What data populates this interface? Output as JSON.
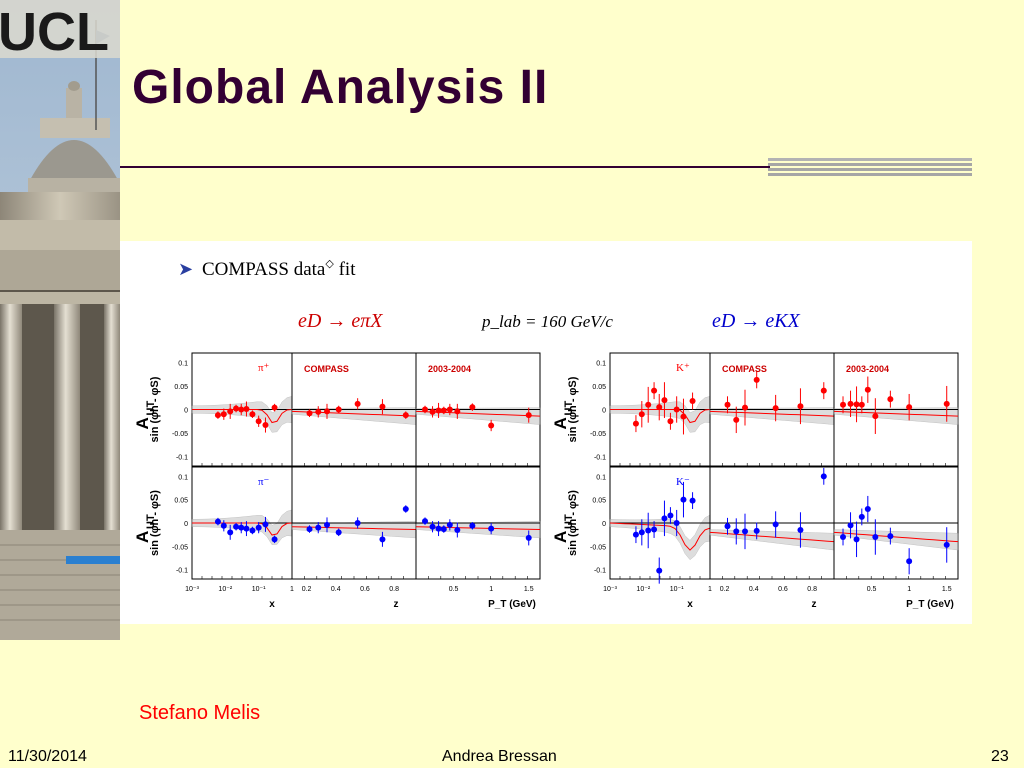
{
  "slide": {
    "title": "Global Analysis II",
    "author_note": "Stefano Melis",
    "footer": {
      "date": "11/30/2014",
      "presenter": "Andrea Bressan",
      "page": "23"
    },
    "logo_text": "UCL",
    "colors": {
      "background": "#ffffcc",
      "title": "#330033",
      "author": "#ff0000",
      "rule": "#330033"
    }
  },
  "figure": {
    "bullet": "➤",
    "heading": "COMPASS data",
    "heading_sup": "◇",
    "heading_end": " fit",
    "plab": "p_lab = 160 GeV/c",
    "left_process": "eD → eπX",
    "right_process": "eD → eKX",
    "ylabel_top": "sin (φh - φS)",
    "ylabel_main": "A",
    "ylabel_sub": "UT",
    "panel_labels": {
      "pi_plus": "π⁺",
      "pi_minus": "π⁻",
      "k_plus": "K⁺",
      "k_minus": "K⁻",
      "compass": "COMPASS",
      "years": "2003-2004"
    },
    "x_axis_labels": [
      "x",
      "z",
      "P_T (GeV)"
    ],
    "y_ticks": [
      "0.1",
      "0.05",
      "0",
      "-0.05",
      "-0.1"
    ],
    "x_ticks_x": [
      "10⁻³",
      "10⁻²",
      "10⁻¹",
      "1"
    ],
    "x_ticks_z": [
      "0.2",
      "0.4",
      "0.6",
      "0.8"
    ],
    "x_ticks_pt": [
      "0.5",
      "1",
      "1.5"
    ],
    "colors": {
      "positive": "#ff0000",
      "negative": "#0000ff",
      "curve": "#ff0000",
      "band": "#c8c8c8",
      "process": "#cc0000",
      "process_k": "#0000cc"
    }
  },
  "chart_data": [
    {
      "type": "scatter",
      "title": "π⁺",
      "xlabel": "x",
      "ylabel": "A_UT sin(φh - φS)",
      "ylim": [
        -0.12,
        0.12
      ],
      "log_x": true,
      "series": [
        {
          "name": "π⁺",
          "x": [
            0.006,
            0.009,
            0.014,
            0.021,
            0.03,
            0.043,
            0.065,
            0.1,
            0.16,
            0.3
          ],
          "y": [
            -0.012,
            -0.01,
            -0.004,
            0.002,
            0.0,
            0.001,
            -0.01,
            -0.025,
            -0.033,
            0.004
          ]
        }
      ]
    },
    {
      "type": "scatter",
      "title": "COMPASS",
      "xlabel": "z",
      "ylabel": "",
      "ylim": [
        -0.12,
        0.12
      ],
      "series": [
        {
          "name": "π⁺",
          "x": [
            0.22,
            0.28,
            0.34,
            0.42,
            0.55,
            0.72,
            0.88
          ],
          "y": [
            -0.008,
            -0.005,
            -0.004,
            0.0,
            0.012,
            0.006,
            -0.012
          ]
        }
      ]
    },
    {
      "type": "scatter",
      "title": "2003-2004",
      "xlabel": "P_T (GeV)",
      "ylabel": "",
      "ylim": [
        -0.12,
        0.12
      ],
      "series": [
        {
          "name": "π⁺",
          "x": [
            0.12,
            0.22,
            0.3,
            0.37,
            0.45,
            0.55,
            0.75,
            1.0,
            1.5
          ],
          "y": [
            0.0,
            -0.005,
            -0.002,
            -0.002,
            0.0,
            -0.004,
            0.005,
            -0.034,
            -0.012
          ]
        }
      ]
    },
    {
      "type": "scatter",
      "title": "π⁻",
      "xlabel": "x",
      "ylabel": "A_UT sin(φh - φS)",
      "ylim": [
        -0.12,
        0.12
      ],
      "log_x": true,
      "series": [
        {
          "name": "π⁻",
          "x": [
            0.006,
            0.009,
            0.014,
            0.021,
            0.03,
            0.043,
            0.065,
            0.1,
            0.16,
            0.3
          ],
          "y": [
            0.003,
            -0.006,
            -0.02,
            -0.008,
            -0.01,
            -0.012,
            -0.016,
            -0.01,
            -0.003,
            -0.035
          ]
        }
      ]
    },
    {
      "type": "scatter",
      "title": "COMPASS",
      "xlabel": "z",
      "ylabel": "",
      "ylim": [
        -0.12,
        0.12
      ],
      "series": [
        {
          "name": "π⁻",
          "x": [
            0.22,
            0.28,
            0.34,
            0.42,
            0.55,
            0.72,
            0.88
          ],
          "y": [
            -0.013,
            -0.01,
            -0.004,
            -0.02,
            0.0,
            -0.035,
            0.03
          ]
        }
      ]
    },
    {
      "type": "scatter",
      "title": "2003-2004",
      "xlabel": "P_T (GeV)",
      "ylabel": "",
      "ylim": [
        -0.12,
        0.12
      ],
      "series": [
        {
          "name": "π⁻",
          "x": [
            0.12,
            0.22,
            0.3,
            0.37,
            0.45,
            0.55,
            0.75,
            1.0,
            1.5
          ],
          "y": [
            0.004,
            -0.008,
            -0.012,
            -0.013,
            -0.004,
            -0.015,
            -0.006,
            -0.012,
            -0.032
          ]
        }
      ]
    },
    {
      "type": "scatter",
      "title": "K⁺",
      "xlabel": "x",
      "ylabel": "A_UT sin(φh - φS)",
      "ylim": [
        -0.12,
        0.12
      ],
      "log_x": true,
      "series": [
        {
          "name": "K⁺",
          "x": [
            0.006,
            0.009,
            0.014,
            0.021,
            0.03,
            0.043,
            0.065,
            0.1,
            0.16,
            0.3
          ],
          "y": [
            -0.03,
            -0.01,
            0.01,
            0.04,
            0.005,
            0.02,
            -0.025,
            0.0,
            -0.015,
            0.018
          ]
        }
      ]
    },
    {
      "type": "scatter",
      "title": "COMPASS",
      "xlabel": "z",
      "ylabel": "",
      "ylim": [
        -0.12,
        0.12
      ],
      "series": [
        {
          "name": "K⁺",
          "x": [
            0.22,
            0.28,
            0.34,
            0.42,
            0.55,
            0.72,
            0.88
          ],
          "y": [
            0.01,
            -0.022,
            0.004,
            0.063,
            0.003,
            0.007,
            0.04
          ]
        }
      ]
    },
    {
      "type": "scatter",
      "title": "2003-2004",
      "xlabel": "P_T (GeV)",
      "ylabel": "",
      "ylim": [
        -0.12,
        0.12
      ],
      "series": [
        {
          "name": "K⁺",
          "x": [
            0.12,
            0.22,
            0.3,
            0.37,
            0.45,
            0.55,
            0.75,
            1.0,
            1.5
          ],
          "y": [
            0.01,
            0.012,
            0.011,
            0.01,
            0.042,
            -0.014,
            0.022,
            0.005,
            0.012
          ]
        }
      ]
    },
    {
      "type": "scatter",
      "title": "K⁻",
      "xlabel": "x",
      "ylabel": "A_UT sin(φh - φS)",
      "ylim": [
        -0.12,
        0.12
      ],
      "log_x": true,
      "series": [
        {
          "name": "K⁻",
          "x": [
            0.006,
            0.009,
            0.014,
            0.021,
            0.03,
            0.043,
            0.065,
            0.1,
            0.16,
            0.3
          ],
          "y": [
            -0.025,
            -0.02,
            -0.016,
            -0.014,
            -0.102,
            0.01,
            0.016,
            0.0,
            0.05,
            0.048
          ]
        }
      ]
    },
    {
      "type": "scatter",
      "title": "COMPASS",
      "xlabel": "z",
      "ylabel": "",
      "ylim": [
        -0.12,
        0.12
      ],
      "series": [
        {
          "name": "K⁻",
          "x": [
            0.22,
            0.28,
            0.34,
            0.42,
            0.55,
            0.72,
            0.88
          ],
          "y": [
            -0.007,
            -0.018,
            -0.018,
            -0.017,
            -0.003,
            -0.015,
            0.1
          ]
        }
      ]
    },
    {
      "type": "scatter",
      "title": "2003-2004",
      "xlabel": "P_T (GeV)",
      "ylabel": "",
      "ylim": [
        -0.12,
        0.12
      ],
      "series": [
        {
          "name": "K⁻",
          "x": [
            0.12,
            0.22,
            0.3,
            0.37,
            0.45,
            0.55,
            0.75,
            1.0,
            1.5
          ],
          "y": [
            -0.03,
            -0.005,
            -0.035,
            0.013,
            0.03,
            -0.03,
            -0.028,
            -0.082,
            -0.047
          ]
        }
      ]
    }
  ]
}
